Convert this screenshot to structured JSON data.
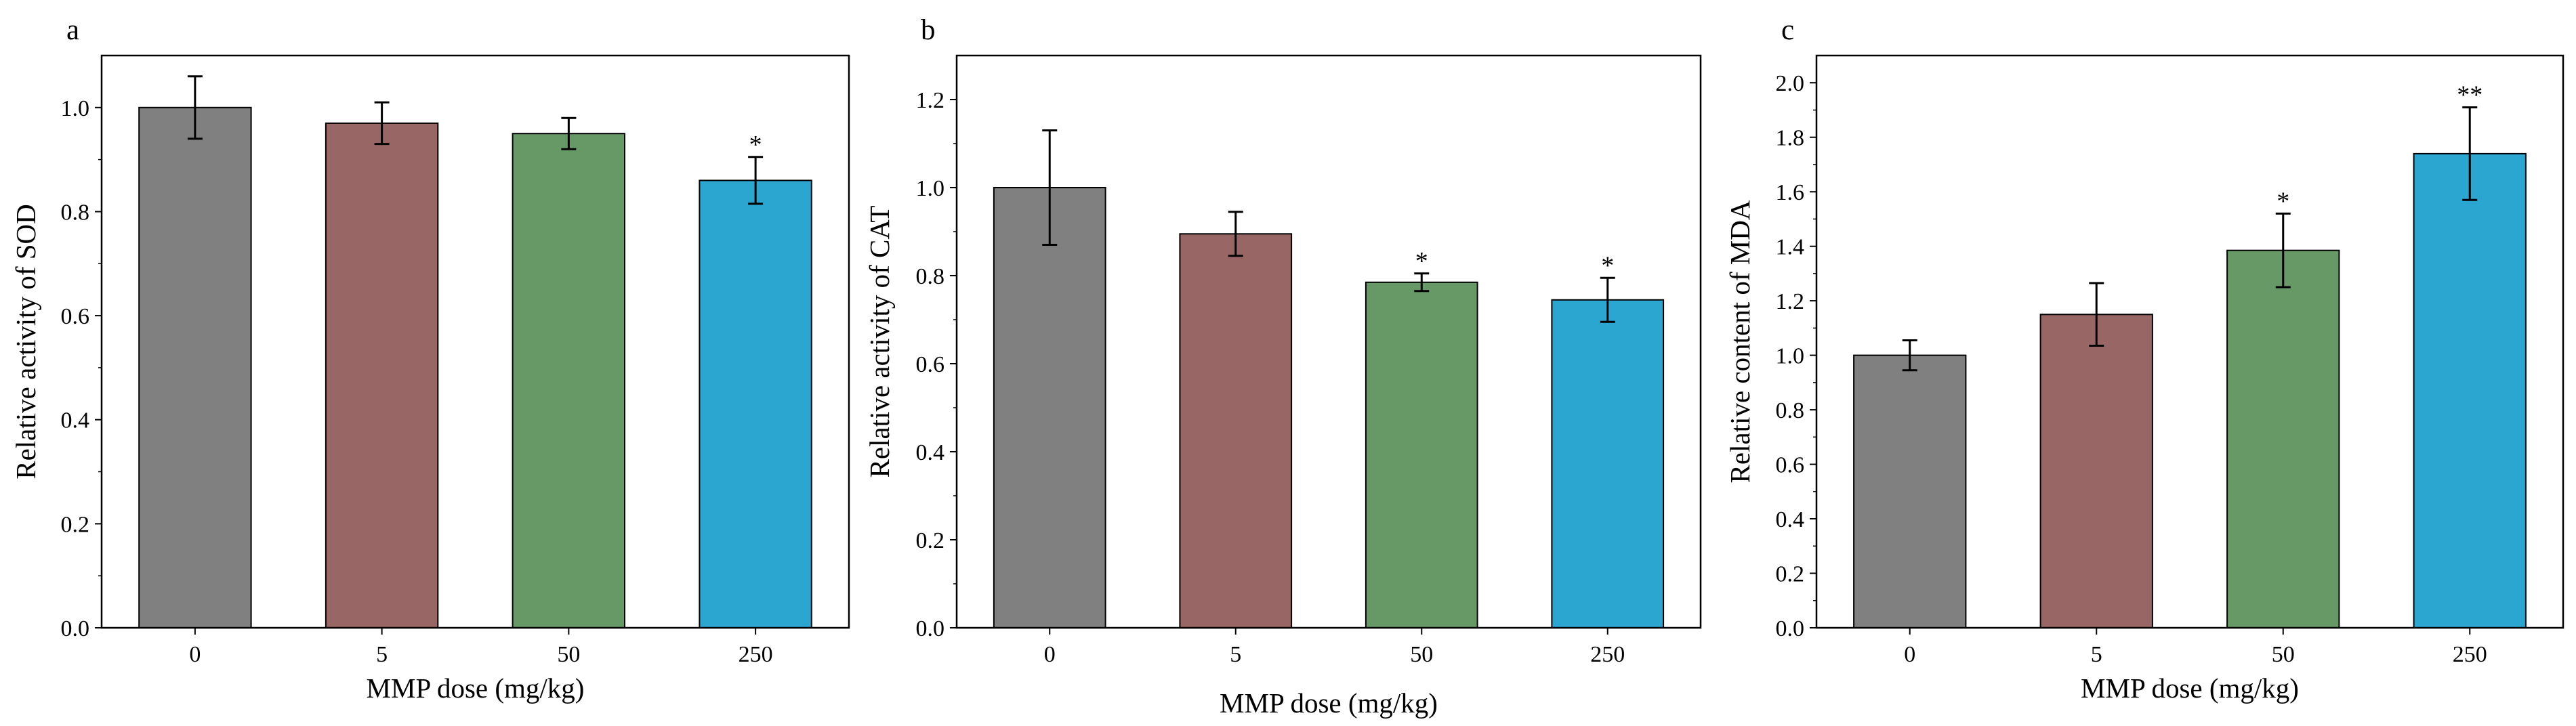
{
  "bar_colors": [
    "#808080",
    "#996666",
    "#669966",
    "#2aa6d0"
  ],
  "chart_data": [
    {
      "type": "bar",
      "panel": "a",
      "title": "",
      "xlabel": "MMP dose (mg/kg)",
      "ylabel": "Relative activity of SOD",
      "categories": [
        "0",
        "5",
        "50",
        "250"
      ],
      "values": [
        1.0,
        0.97,
        0.95,
        0.86
      ],
      "errors": [
        0.06,
        0.04,
        0.03,
        0.045
      ],
      "significance": [
        "",
        "",
        "",
        "*"
      ],
      "ylim": [
        0,
        1.1
      ],
      "yticks": [
        0.0,
        0.2,
        0.4,
        0.6,
        0.8,
        1.0
      ],
      "ytick_labels": [
        "0.0",
        "0.2",
        "0.4",
        "0.6",
        "0.8",
        "1.0"
      ]
    },
    {
      "type": "bar",
      "panel": "b",
      "title": "",
      "xlabel": "MMP dose (mg/kg)",
      "ylabel": "Relative activity of CAT",
      "categories": [
        "0",
        "5",
        "50",
        "250"
      ],
      "values": [
        1.0,
        0.895,
        0.785,
        0.745
      ],
      "errors": [
        0.13,
        0.05,
        0.02,
        0.05
      ],
      "significance": [
        "",
        "",
        "*",
        "*"
      ],
      "ylim": [
        0,
        1.3
      ],
      "yticks": [
        0.0,
        0.2,
        0.4,
        0.6,
        0.8,
        1.0,
        1.2
      ],
      "ytick_labels": [
        "0.0",
        "0.2",
        "0.4",
        "0.6",
        "0.8",
        "1.0",
        "1.2"
      ]
    },
    {
      "type": "bar",
      "panel": "c",
      "title": "",
      "xlabel": "MMP dose (mg/kg)",
      "ylabel": "Relative content of MDA",
      "categories": [
        "0",
        "5",
        "50",
        "250"
      ],
      "values": [
        1.0,
        1.15,
        1.385,
        1.74
      ],
      "errors": [
        0.055,
        0.115,
        0.135,
        0.17
      ],
      "significance": [
        "",
        "",
        "*",
        "**"
      ],
      "ylim": [
        0,
        2.1
      ],
      "yticks": [
        0.0,
        0.2,
        0.4,
        0.6,
        0.8,
        1.0,
        1.2,
        1.4,
        1.6,
        1.8,
        2.0
      ],
      "ytick_labels": [
        "0.0",
        "0.2",
        "0.4",
        "0.6",
        "0.8",
        "1.0",
        "1.2",
        "1.4",
        "1.6",
        "1.8",
        "2.0"
      ]
    }
  ]
}
